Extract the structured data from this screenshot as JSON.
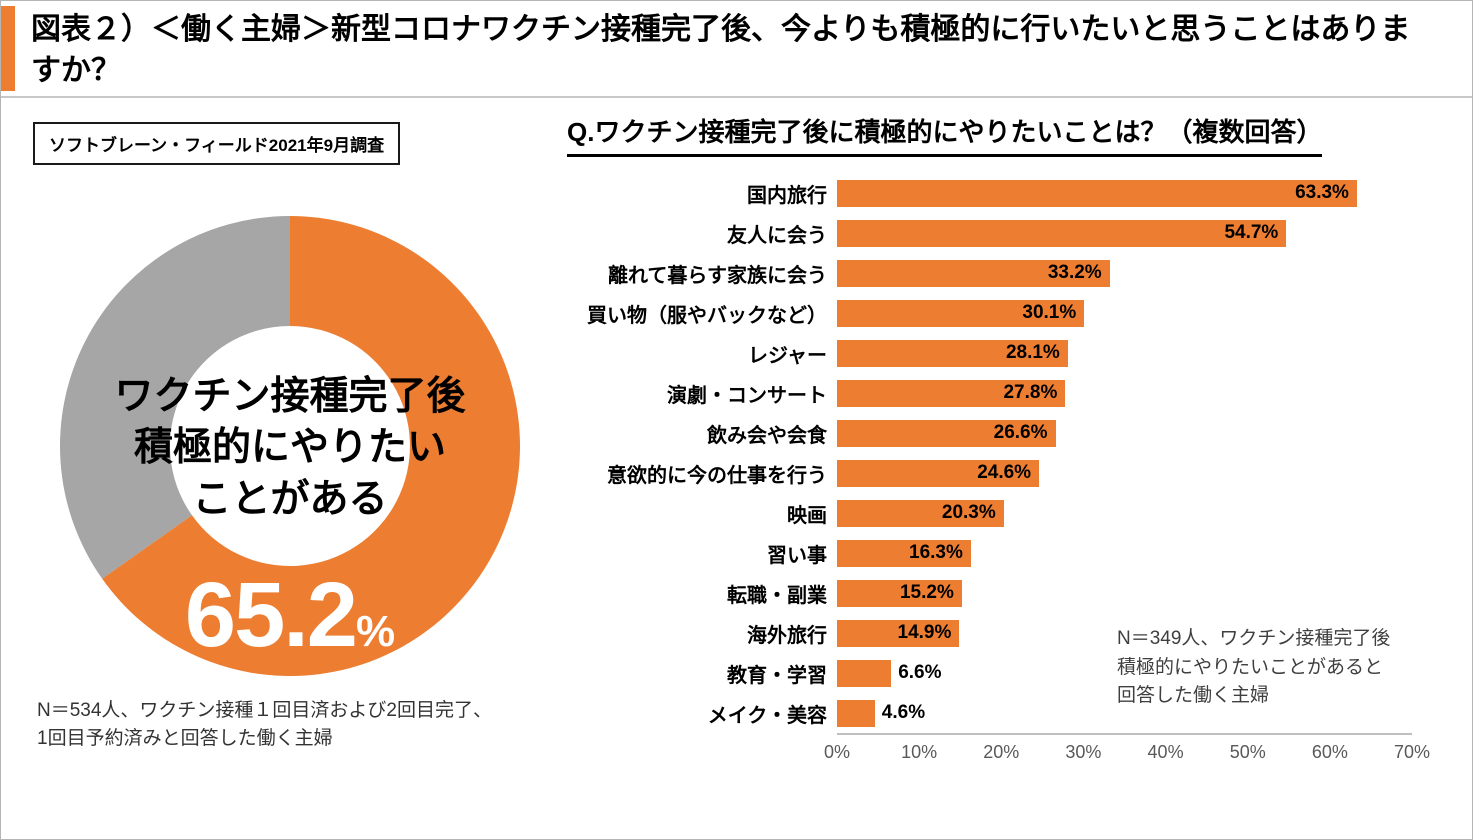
{
  "header": {
    "title": "図表２）＜働く主婦＞新型コロナワクチン接種完了後、今よりも積極的に行いたいと思うことはありますか？"
  },
  "left_panel": {
    "source_label": "ソフトブレーン・フィールド2021年9月調査",
    "footnote_lines": [
      "N＝534人、ワクチン接種１回目済および2回目完了、",
      "1回目予約済みと回答した働く主婦"
    ]
  },
  "right_panel": {
    "note_lines": [
      "N＝349人、ワクチン接種完了後",
      "積極的にやりたいことがあると",
      "回答した働く主婦"
    ]
  },
  "colors": {
    "orange": "#ED7D31",
    "gray": "#A6A6A6"
  },
  "chart_data": [
    {
      "type": "pie",
      "donut": true,
      "center_label_lines": [
        "ワクチン接種完了後",
        "積極的にやりたい",
        "ことがある"
      ],
      "value_label": "65.2",
      "value_unit": "%",
      "values": [
        65.2,
        34.8
      ],
      "slice_colors": [
        "#ED7D31",
        "#A6A6A6"
      ],
      "legend": "none"
    },
    {
      "type": "bar",
      "orientation": "horizontal",
      "title": "Q.ワクチン接種完了後に積極的にやりたいことは？（複数回答）",
      "categories": [
        "国内旅行",
        "友人に会う",
        "離れて暮らす家族に会う",
        "買い物（服やバックなど）",
        "レジャー",
        "演劇・コンサート",
        "飲み会や会食",
        "意欲的に今の仕事を行う",
        "映画",
        "習い事",
        "転職・副業",
        "海外旅行",
        "教育・学習",
        "メイク・美容"
      ],
      "values": [
        63.3,
        54.7,
        33.2,
        30.1,
        28.1,
        27.8,
        26.6,
        24.6,
        20.3,
        16.3,
        15.2,
        14.9,
        6.6,
        4.6
      ],
      "value_suffix": "%",
      "xlim": [
        0,
        70
      ],
      "x_ticks": [
        "0%",
        "10%",
        "20%",
        "30%",
        "40%",
        "50%",
        "60%",
        "70%"
      ],
      "bar_color": "#ED7D31",
      "grid": false,
      "legend": "none"
    }
  ]
}
